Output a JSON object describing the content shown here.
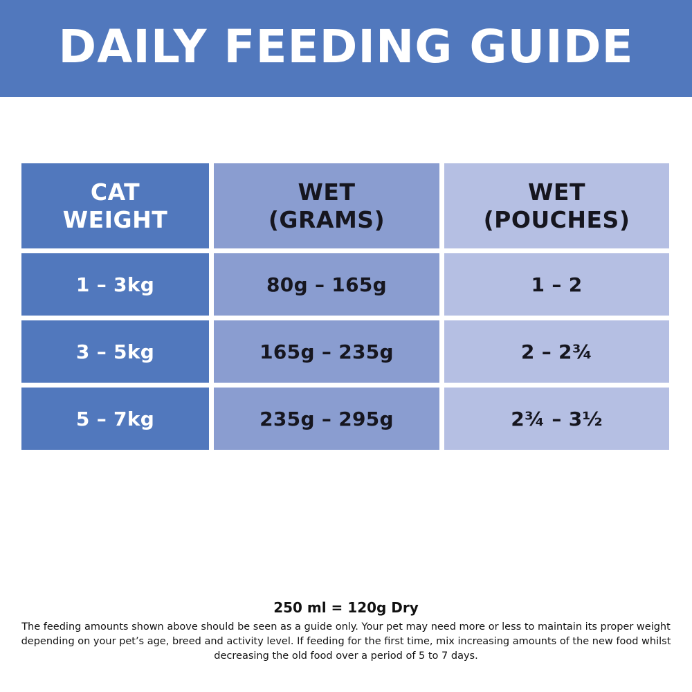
{
  "banner": {
    "title": "DAILY FEEDING GUIDE"
  },
  "table": {
    "headers": {
      "weight": "CAT\nWEIGHT",
      "grams": "WET\n(GRAMS)",
      "pouches": "WET\n(POUCHES)"
    },
    "rows": [
      {
        "weight": "1 – 3kg",
        "grams": "80g – 165g",
        "pouches": "1 – 2"
      },
      {
        "weight": "3 – 5kg",
        "grams": "165g – 235g",
        "pouches": "2 – 2¾"
      },
      {
        "weight": "5 – 7kg",
        "grams": "235g – 295g",
        "pouches": "2¾ – 3½"
      }
    ]
  },
  "footer": {
    "conversion": "250 ml = 120g Dry",
    "disclaimer": "The feeding amounts shown above should be seen as a guide only. Your pet may need more or less to maintain its proper weight depending on your pet’s age, breed and activity level. If feeding for the first time, mix increasing amounts of the new food whilst decreasing the old food over a period of 5 to 7 days."
  },
  "colors": {
    "banner": "#5178bd",
    "weight_column": "#5178bd",
    "grams_column": "#8a9dd0",
    "pouches_column": "#b5bfe3"
  }
}
